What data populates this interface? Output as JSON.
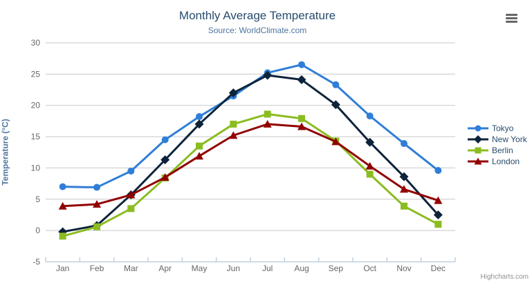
{
  "credits": "Highcharts.com",
  "chart_data": {
    "type": "line",
    "title": "Monthly Average Temperature",
    "subtitle": "Source: WorldClimate.com",
    "categories": [
      "Jan",
      "Feb",
      "Mar",
      "Apr",
      "May",
      "Jun",
      "Jul",
      "Aug",
      "Sep",
      "Oct",
      "Nov",
      "Dec"
    ],
    "xlabel": "",
    "ylabel": "Temperature (°C)",
    "ylim": [
      -5,
      30
    ],
    "ytick_interval": 5,
    "grid": true,
    "legend_position": "right",
    "series": [
      {
        "name": "Tokyo",
        "color": "#2f7ed8",
        "marker": "circle",
        "values": [
          7.0,
          6.9,
          9.5,
          14.5,
          18.2,
          21.5,
          25.2,
          26.5,
          23.3,
          18.3,
          13.9,
          9.6
        ]
      },
      {
        "name": "New York",
        "color": "#0d233a",
        "marker": "diamond",
        "values": [
          -0.2,
          0.8,
          5.7,
          11.3,
          17.0,
          22.0,
          24.8,
          24.1,
          20.1,
          14.1,
          8.6,
          2.5
        ]
      },
      {
        "name": "Berlin",
        "color": "#8bbc21",
        "marker": "square",
        "values": [
          -0.9,
          0.6,
          3.5,
          8.4,
          13.5,
          17.0,
          18.6,
          17.9,
          14.3,
          9.0,
          3.9,
          1.0
        ]
      },
      {
        "name": "London",
        "color": "#910000",
        "marker": "triangle",
        "values": [
          3.9,
          4.2,
          5.7,
          8.5,
          11.9,
          15.2,
          17.0,
          16.6,
          14.2,
          10.3,
          6.6,
          4.8
        ]
      }
    ],
    "axis_colors": {
      "grid": "#c8c8c8",
      "axis_line": "#c0d0e0",
      "tick": "#c0d0e0",
      "label": "#666666"
    }
  }
}
